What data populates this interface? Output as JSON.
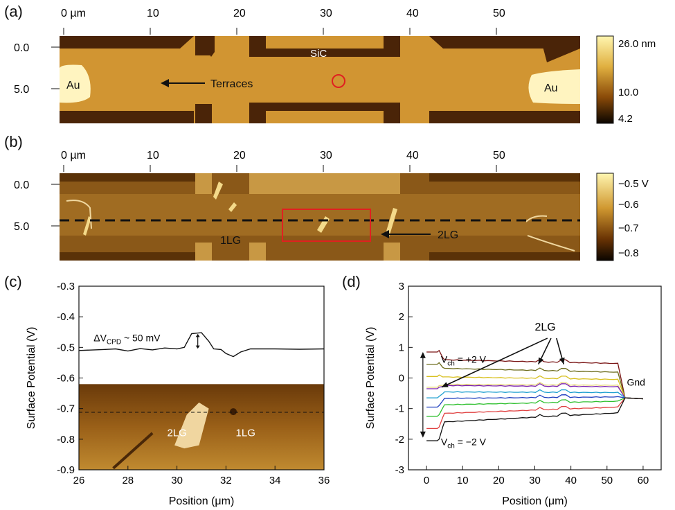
{
  "panels": {
    "a": {
      "label": "(a)",
      "top_ticks": [
        "0 µm",
        "10",
        "20",
        "30",
        "40",
        "50"
      ],
      "left_ticks": [
        "0.0",
        "5.0"
      ],
      "annotations": {
        "au_left": "Au",
        "au_right": "Au",
        "sic": "SiC",
        "terraces": "Terraces"
      },
      "colorbar_labels": [
        "26.0 nm",
        "10.0",
        "4.2"
      ]
    },
    "b": {
      "label": "(b)",
      "top_ticks": [
        "0 µm",
        "10",
        "20",
        "30",
        "40",
        "50"
      ],
      "left_ticks": [
        "0.0",
        "5.0"
      ],
      "annotations": {
        "one_lg": "1LG",
        "two_lg": "2LG"
      },
      "colorbar_labels": [
        "−0.5 V",
        "−0.6",
        "−0.7",
        "−0.8"
      ]
    },
    "c": {
      "label": "(c)",
      "annotation_delta": "ΔV",
      "annotation_sub": "CPD",
      "annotation_rest": " ~ 50 mV",
      "inset_2lg": "2LG",
      "inset_1lg": "1LG"
    },
    "d": {
      "label": "(d)",
      "label_2lg": "2LG",
      "vch_top": "V",
      "vch_top_sub": "ch",
      "vch_top_rest": " = +2 V",
      "vch_bottom": "V",
      "vch_bottom_sub": "ch",
      "vch_bottom_rest": " = −2 V",
      "gnd": "Gnd"
    }
  },
  "chart_data": [
    {
      "type": "line",
      "panel": "c",
      "xlabel": "Position (μm)",
      "ylabel": "Surface Potential (V)",
      "xlim": [
        26,
        36
      ],
      "ylim": [
        -0.9,
        -0.3
      ],
      "xticks": [
        "26",
        "28",
        "30",
        "32",
        "34",
        "36"
      ],
      "yticks": [
        "-0.3",
        "-0.4",
        "-0.5",
        "-0.6",
        "-0.7",
        "-0.8",
        "-0.9"
      ],
      "series": [
        {
          "x": [
            26,
            27,
            27.5,
            28,
            28.5,
            29,
            29.5,
            30,
            30.3,
            30.6,
            31,
            31.3,
            31.5,
            31.8,
            32,
            32.3,
            32.6,
            33,
            34,
            35,
            36
          ],
          "y": [
            -0.51,
            -0.507,
            -0.505,
            -0.512,
            -0.504,
            -0.508,
            -0.502,
            -0.505,
            -0.5,
            -0.455,
            -0.452,
            -0.48,
            -0.505,
            -0.507,
            -0.52,
            -0.53,
            -0.515,
            -0.505,
            -0.505,
            -0.506,
            -0.505
          ]
        }
      ]
    },
    {
      "type": "line",
      "panel": "d",
      "xlabel": "Position (μm)",
      "ylabel": "Surface Potential (V)",
      "xlim": [
        -5,
        65
      ],
      "ylim": [
        -3,
        3
      ],
      "xticks": [
        "0",
        "10",
        "20",
        "30",
        "40",
        "50",
        "60"
      ],
      "yticks": [
        "3",
        "2",
        "1",
        "0",
        "-1",
        "-2",
        "-3"
      ],
      "series": [
        {
          "color": "#7a1515",
          "start": 0.85,
          "end": 0.5
        },
        {
          "color": "#6b6b1a",
          "start": 0.45,
          "end": 0.2
        },
        {
          "color": "#d8c020",
          "start": 0.05,
          "end": -0.05
        },
        {
          "color": "#e8d87a",
          "start": -0.3,
          "end": -0.25
        },
        {
          "color": "#7a1fb0",
          "start": -0.35,
          "end": -0.3
        },
        {
          "color": "#20a0d0",
          "start": -0.65,
          "end": -0.5
        },
        {
          "color": "#2040c0",
          "start": -0.95,
          "end": -0.65
        },
        {
          "color": "#30c030",
          "start": -1.25,
          "end": -0.8
        },
        {
          "color": "#e04040",
          "start": -1.65,
          "end": -1.0
        },
        {
          "color": "#111111",
          "start": -2.05,
          "end": -1.2
        }
      ]
    }
  ]
}
